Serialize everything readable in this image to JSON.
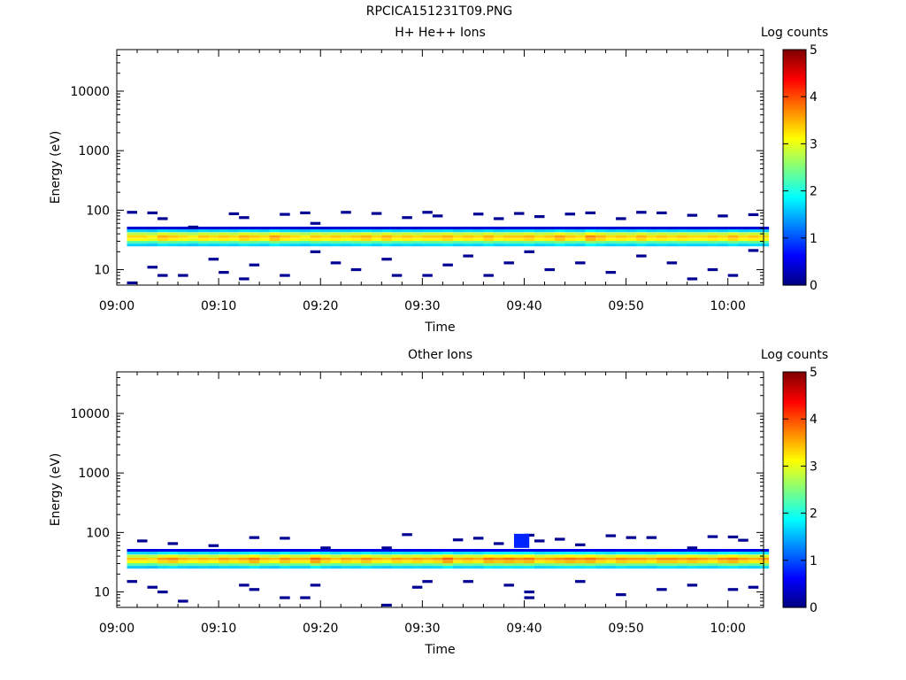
{
  "title": "RPCICA151231T09.PNG",
  "colorbar": {
    "label": "Log counts",
    "ticks": [
      "0",
      "1",
      "2",
      "3",
      "4",
      "5"
    ],
    "range": [
      0,
      5
    ]
  },
  "chart_data": [
    {
      "type": "heatmap",
      "title": "H+ He++ Ions",
      "xlabel": "Time",
      "ylabel": "Energy (eV)",
      "x_ticks": [
        "09:00",
        "09:10",
        "09:20",
        "09:30",
        "09:40",
        "09:50",
        "10:00"
      ],
      "y_ticks": [
        "10",
        "100",
        "1000",
        "10000"
      ],
      "x_range": [
        "09:00",
        "10:03:30"
      ],
      "ylim": [
        5.5,
        50000
      ],
      "y_scale": "log",
      "colorbar_label": "Log counts",
      "colorbar_range": [
        0,
        5
      ],
      "profile": [
        {
          "energy_ev": 26,
          "log_counts": 1.6
        },
        {
          "energy_ev": 29,
          "log_counts": 2.2
        },
        {
          "energy_ev": 32,
          "log_counts": 3.0
        },
        {
          "energy_ev": 36,
          "log_counts": 3.2
        },
        {
          "energy_ev": 40,
          "log_counts": 2.7
        },
        {
          "energy_ev": 45,
          "log_counts": 1.6
        },
        {
          "energy_ev": 50,
          "log_counts": 0.4
        }
      ],
      "band_peak_log_counts": [
        3.3,
        3.3,
        3.2,
        3.5,
        3.4,
        3.3,
        3.2,
        3.4,
        3.3,
        3.4,
        3.3,
        3.5,
        3.4,
        3.3,
        3.6,
        3.4,
        3.3,
        3.2,
        3.4,
        3.3,
        3.4,
        3.3,
        3.4,
        3.5,
        3.3,
        3.5,
        3.3,
        3.4,
        3.3,
        3.4,
        3.4,
        3.5,
        3.3,
        3.4,
        3.3,
        3.5,
        3.3,
        3.4,
        3.4,
        3.5,
        3.3,
        3.4,
        3.6,
        3.4,
        3.3,
        3.7,
        3.5,
        3.3,
        3.4,
        3.3,
        3.5,
        3.3,
        3.4,
        3.3,
        3.4,
        3.3,
        3.3,
        3.4,
        3.3,
        3.5,
        3.3,
        3.4,
        3.3
      ],
      "sparse": [
        {
          "t": "09:01",
          "e": 92
        },
        {
          "t": "09:03",
          "e": 90
        },
        {
          "t": "09:04",
          "e": 72
        },
        {
          "t": "09:07",
          "e": 52
        },
        {
          "t": "09:11",
          "e": 87
        },
        {
          "t": "09:12",
          "e": 75
        },
        {
          "t": "09:16",
          "e": 85
        },
        {
          "t": "09:18",
          "e": 90
        },
        {
          "t": "09:19",
          "e": 60
        },
        {
          "t": "09:22",
          "e": 92
        },
        {
          "t": "09:25",
          "e": 88
        },
        {
          "t": "09:28",
          "e": 75
        },
        {
          "t": "09:30",
          "e": 92
        },
        {
          "t": "09:31",
          "e": 80
        },
        {
          "t": "09:35",
          "e": 86
        },
        {
          "t": "09:37",
          "e": 72
        },
        {
          "t": "09:39",
          "e": 88
        },
        {
          "t": "09:41",
          "e": 78
        },
        {
          "t": "09:44",
          "e": 86
        },
        {
          "t": "09:46",
          "e": 90
        },
        {
          "t": "09:49",
          "e": 72
        },
        {
          "t": "09:51",
          "e": 92
        },
        {
          "t": "09:53",
          "e": 90
        },
        {
          "t": "09:56",
          "e": 82
        },
        {
          "t": "09:59",
          "e": 80
        },
        {
          "t": "10:02",
          "e": 84
        },
        {
          "t": "09:01",
          "e": 6
        },
        {
          "t": "09:03",
          "e": 11
        },
        {
          "t": "09:04",
          "e": 8
        },
        {
          "t": "09:06",
          "e": 8
        },
        {
          "t": "09:09",
          "e": 15
        },
        {
          "t": "09:10",
          "e": 9
        },
        {
          "t": "09:12",
          "e": 7
        },
        {
          "t": "09:13",
          "e": 12
        },
        {
          "t": "09:16",
          "e": 8
        },
        {
          "t": "09:19",
          "e": 20
        },
        {
          "t": "09:21",
          "e": 13
        },
        {
          "t": "09:23",
          "e": 10
        },
        {
          "t": "09:26",
          "e": 15
        },
        {
          "t": "09:27",
          "e": 8
        },
        {
          "t": "09:30",
          "e": 8
        },
        {
          "t": "09:32",
          "e": 12
        },
        {
          "t": "09:34",
          "e": 17
        },
        {
          "t": "09:36",
          "e": 8
        },
        {
          "t": "09:38",
          "e": 13
        },
        {
          "t": "09:40",
          "e": 20
        },
        {
          "t": "09:42",
          "e": 10
        },
        {
          "t": "09:45",
          "e": 13
        },
        {
          "t": "09:48",
          "e": 9
        },
        {
          "t": "09:51",
          "e": 17
        },
        {
          "t": "09:54",
          "e": 13
        },
        {
          "t": "09:56",
          "e": 7
        },
        {
          "t": "09:58",
          "e": 10
        },
        {
          "t": "10:00",
          "e": 8
        },
        {
          "t": "10:02",
          "e": 21
        }
      ]
    },
    {
      "type": "heatmap",
      "title": "Other Ions",
      "xlabel": "Time",
      "ylabel": "Energy (eV)",
      "x_ticks": [
        "09:00",
        "09:10",
        "09:20",
        "09:30",
        "09:40",
        "09:50",
        "10:00"
      ],
      "y_ticks": [
        "10",
        "100",
        "1000",
        "10000"
      ],
      "x_range": [
        "09:00",
        "10:03:30"
      ],
      "ylim": [
        5.5,
        50000
      ],
      "y_scale": "log",
      "colorbar_label": "Log counts",
      "colorbar_range": [
        0,
        5
      ],
      "profile": [
        {
          "energy_ev": 26,
          "log_counts": 1.6
        },
        {
          "energy_ev": 29,
          "log_counts": 2.3
        },
        {
          "energy_ev": 32,
          "log_counts": 3.1
        },
        {
          "energy_ev": 36,
          "log_counts": 3.4
        },
        {
          "energy_ev": 40,
          "log_counts": 2.8
        },
        {
          "energy_ev": 45,
          "log_counts": 1.7
        },
        {
          "energy_ev": 50,
          "log_counts": 0.5
        }
      ],
      "band_peak_log_counts": [
        3.4,
        3.4,
        3.3,
        3.6,
        3.7,
        3.5,
        3.4,
        3.5,
        3.4,
        3.6,
        3.5,
        3.6,
        3.8,
        3.5,
        3.4,
        3.7,
        3.5,
        3.5,
        3.9,
        3.6,
        3.4,
        3.6,
        3.5,
        3.7,
        3.5,
        3.4,
        3.6,
        3.5,
        3.6,
        3.5,
        3.6,
        3.9,
        3.5,
        3.6,
        3.5,
        3.8,
        3.7,
        3.8,
        3.7,
        3.8,
        3.5,
        3.6,
        3.7,
        3.8,
        3.7,
        3.8,
        3.6,
        3.5,
        3.7,
        3.6,
        3.6,
        3.5,
        3.7,
        3.7,
        3.6,
        3.7,
        3.6,
        3.5,
        3.7,
        3.8,
        3.6,
        3.5,
        3.6
      ],
      "sparse": [
        {
          "t": "09:02",
          "e": 72
        },
        {
          "t": "09:05",
          "e": 65
        },
        {
          "t": "09:09",
          "e": 60
        },
        {
          "t": "09:13",
          "e": 82
        },
        {
          "t": "09:16",
          "e": 80
        },
        {
          "t": "09:20",
          "e": 55
        },
        {
          "t": "09:26",
          "e": 55
        },
        {
          "t": "09:28",
          "e": 92
        },
        {
          "t": "09:33",
          "e": 75
        },
        {
          "t": "09:35",
          "e": 80
        },
        {
          "t": "09:37",
          "e": 65
        },
        {
          "t": "09:40",
          "e": 90
        },
        {
          "t": "09:41",
          "e": 72
        },
        {
          "t": "09:43",
          "e": 77
        },
        {
          "t": "09:45",
          "e": 62
        },
        {
          "t": "09:48",
          "e": 88
        },
        {
          "t": "09:50",
          "e": 82
        },
        {
          "t": "09:52",
          "e": 82
        },
        {
          "t": "09:56",
          "e": 55
        },
        {
          "t": "09:58",
          "e": 85
        },
        {
          "t": "10:00",
          "e": 84
        },
        {
          "t": "10:01",
          "e": 74
        },
        {
          "t": "09:01",
          "e": 15
        },
        {
          "t": "09:03",
          "e": 12
        },
        {
          "t": "09:04",
          "e": 10
        },
        {
          "t": "09:06",
          "e": 7
        },
        {
          "t": "09:12",
          "e": 13
        },
        {
          "t": "09:13",
          "e": 11
        },
        {
          "t": "09:16",
          "e": 8
        },
        {
          "t": "09:18",
          "e": 8
        },
        {
          "t": "09:19",
          "e": 13
        },
        {
          "t": "09:26",
          "e": 6
        },
        {
          "t": "09:29",
          "e": 12
        },
        {
          "t": "09:30",
          "e": 15
        },
        {
          "t": "09:34",
          "e": 15
        },
        {
          "t": "09:38",
          "e": 13
        },
        {
          "t": "09:40",
          "e": 10
        },
        {
          "t": "09:40",
          "e": 8
        },
        {
          "t": "09:45",
          "e": 15
        },
        {
          "t": "09:49",
          "e": 9
        },
        {
          "t": "09:53",
          "e": 11
        },
        {
          "t": "09:56",
          "e": 13
        },
        {
          "t": "10:00",
          "e": 11
        },
        {
          "t": "10:02",
          "e": 12
        }
      ],
      "blob": {
        "t_start": "09:39",
        "t_end": "09:40",
        "e_low": 55,
        "e_high": 95,
        "log_counts": 0.8
      }
    }
  ]
}
